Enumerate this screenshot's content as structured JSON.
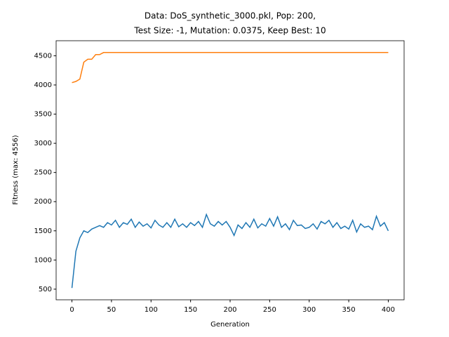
{
  "chart_data": {
    "type": "line",
    "title": [
      "Data: DoS_synthetic_3000.pkl, Pop: 200,",
      "Test Size: -1, Mutation: 0.0375, Keep Best: 10"
    ],
    "xlabel": "Generation",
    "ylabel": "Fitness (max: 4556)",
    "x": [
      0,
      5,
      10,
      15,
      20,
      25,
      30,
      35,
      40,
      45,
      50,
      55,
      60,
      65,
      70,
      75,
      80,
      85,
      90,
      95,
      100,
      105,
      110,
      115,
      120,
      125,
      130,
      135,
      140,
      145,
      150,
      155,
      160,
      165,
      170,
      175,
      180,
      185,
      190,
      195,
      200,
      205,
      210,
      215,
      220,
      225,
      230,
      235,
      240,
      245,
      250,
      255,
      260,
      265,
      270,
      275,
      280,
      285,
      290,
      295,
      300,
      305,
      310,
      315,
      320,
      325,
      330,
      335,
      340,
      345,
      350,
      355,
      360,
      365,
      370,
      375,
      380,
      385,
      390,
      395,
      400
    ],
    "series": [
      {
        "color": "#1f77b4",
        "values": [
          520,
          1150,
          1380,
          1500,
          1470,
          1530,
          1560,
          1590,
          1560,
          1640,
          1600,
          1680,
          1560,
          1640,
          1610,
          1700,
          1560,
          1650,
          1580,
          1620,
          1550,
          1680,
          1600,
          1560,
          1640,
          1560,
          1700,
          1570,
          1620,
          1560,
          1640,
          1590,
          1660,
          1560,
          1780,
          1620,
          1580,
          1660,
          1600,
          1660,
          1560,
          1420,
          1600,
          1540,
          1640,
          1560,
          1700,
          1550,
          1620,
          1580,
          1710,
          1580,
          1740,
          1560,
          1620,
          1520,
          1680,
          1590,
          1600,
          1540,
          1560,
          1620,
          1530,
          1660,
          1620,
          1680,
          1560,
          1640,
          1540,
          1580,
          1530,
          1680,
          1480,
          1620,
          1560,
          1580,
          1520,
          1750,
          1580,
          1640,
          1500
        ]
      },
      {
        "color": "#ff7f0e",
        "values": [
          4040,
          4060,
          4100,
          4390,
          4440,
          4440,
          4520,
          4520,
          4556,
          4556,
          4556,
          4556,
          4556,
          4556,
          4556,
          4556,
          4556,
          4556,
          4556,
          4556,
          4556,
          4556,
          4556,
          4556,
          4556,
          4556,
          4556,
          4556,
          4556,
          4556,
          4556,
          4556,
          4556,
          4556,
          4556,
          4556,
          4556,
          4556,
          4556,
          4556,
          4556,
          4556,
          4556,
          4556,
          4556,
          4556,
          4556,
          4556,
          4556,
          4556,
          4556,
          4556,
          4556,
          4556,
          4556,
          4556,
          4556,
          4556,
          4556,
          4556,
          4556,
          4556,
          4556,
          4556,
          4556,
          4556,
          4556,
          4556,
          4556,
          4556,
          4556,
          4556,
          4556,
          4556,
          4556,
          4556,
          4556,
          4556,
          4556,
          4556,
          4556
        ]
      }
    ],
    "xlim": [
      -20,
      420
    ],
    "xticks": [
      0,
      50,
      100,
      150,
      200,
      250,
      300,
      350,
      400
    ],
    "ylim": [
      318,
      4758
    ],
    "yticks": [
      500,
      1000,
      1500,
      2000,
      2500,
      3000,
      3500,
      4000,
      4500
    ]
  }
}
